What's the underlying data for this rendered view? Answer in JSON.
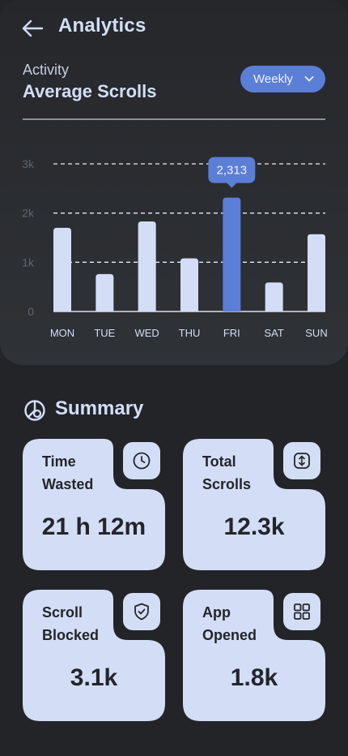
{
  "header": {
    "title": "Analytics",
    "back_icon": "arrow-left-icon"
  },
  "activity": {
    "label": "Activity",
    "title": "Average Scrolls",
    "period": "Weekly"
  },
  "chart_data": {
    "type": "bar",
    "categories": [
      "MON",
      "TUE",
      "WED",
      "THU",
      "FRI",
      "SAT",
      "SUN"
    ],
    "values": [
      1700,
      760,
      1830,
      1080,
      2313,
      590,
      1570
    ],
    "highlight_index": 4,
    "highlight_label": "2,313",
    "y_ticks": [
      "0",
      "1k",
      "2k",
      "3k"
    ],
    "ylim": [
      0,
      3000
    ],
    "grid": "dashed",
    "colors": {
      "bar": "#d3def6",
      "highlight": "#5b7ed6",
      "tick": "#5f6470"
    }
  },
  "summary": {
    "title": "Summary",
    "cards": [
      {
        "label_line1": "Time",
        "label_line2": "Wasted",
        "value": "21 h 12m",
        "icon": "clock-icon"
      },
      {
        "label_line1": "Total",
        "label_line2": "Scrolls",
        "value": "12.3k",
        "icon": "vertical-arrows-icon"
      },
      {
        "label_line1": "Scroll",
        "label_line2": "Blocked",
        "value": "3.1k",
        "icon": "shield-check-icon"
      },
      {
        "label_line1": "App",
        "label_line2": "Opened",
        "value": "1.8k",
        "icon": "grid-icon"
      }
    ]
  },
  "colors": {
    "background": "#222428",
    "card": "#d3def6",
    "accent": "#5b7ed6",
    "text_dark": "#23252a"
  }
}
